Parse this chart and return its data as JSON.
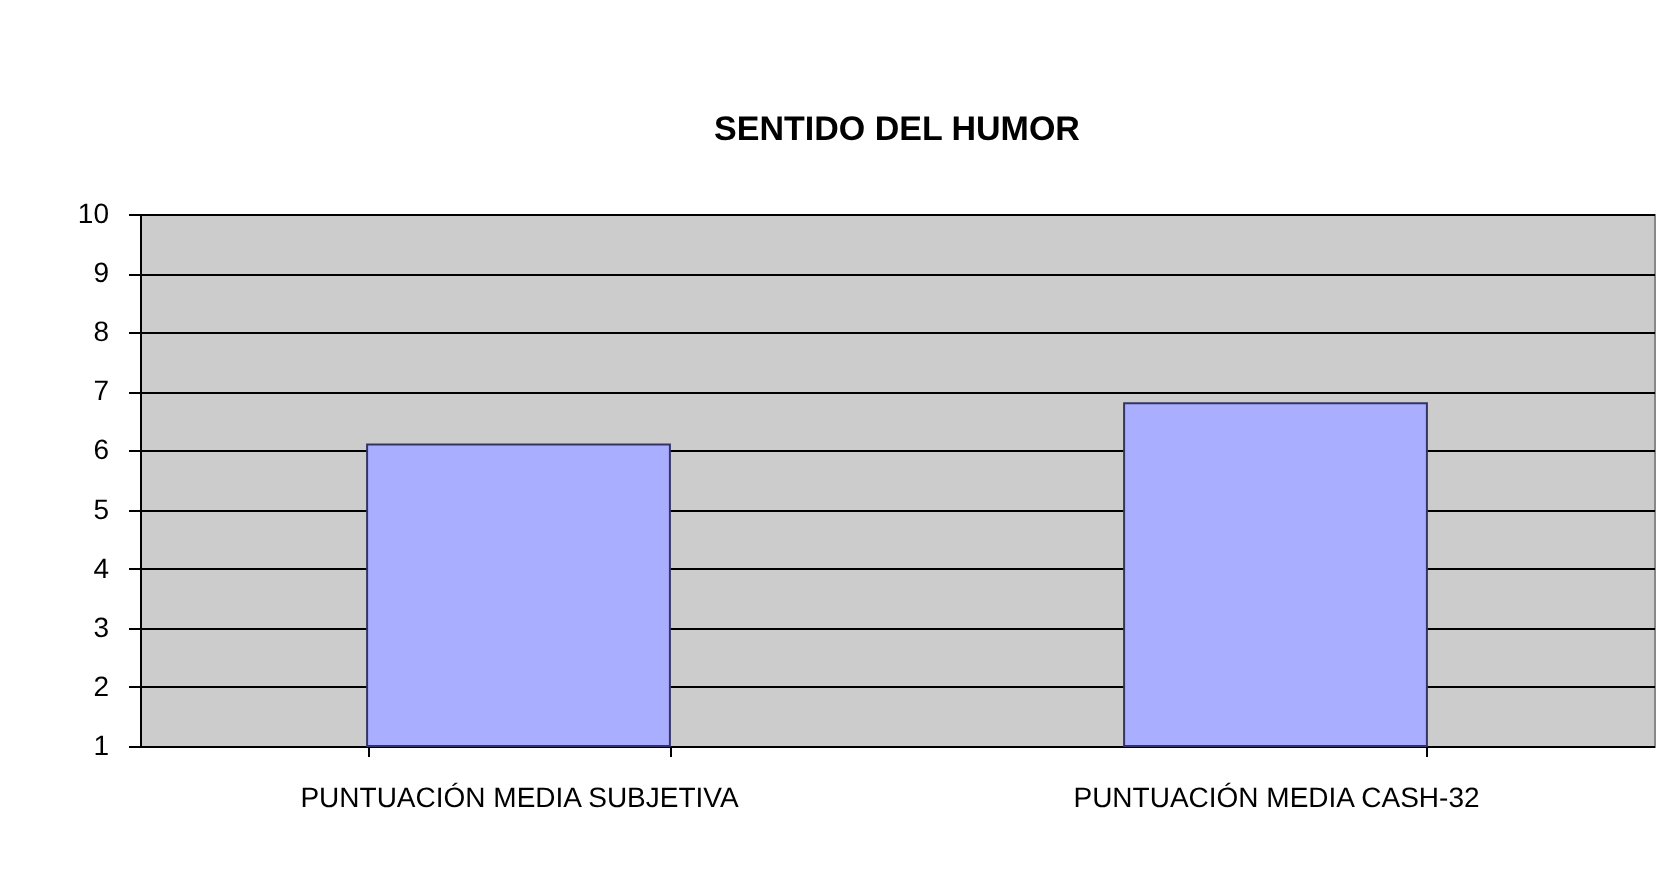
{
  "chart_data": {
    "type": "bar",
    "title": "SENTIDO DEL HUMOR",
    "categories": [
      "PUNTUACIÓN MEDIA SUBJETIVA",
      "PUNTUACIÓN MEDIA CASH-32"
    ],
    "values": [
      6.1,
      6.8
    ],
    "color": "#aaaeff",
    "ylim": [
      1,
      10
    ],
    "yticks": [
      1,
      2,
      3,
      4,
      5,
      6,
      7,
      8,
      9,
      10
    ],
    "grid": "y"
  }
}
